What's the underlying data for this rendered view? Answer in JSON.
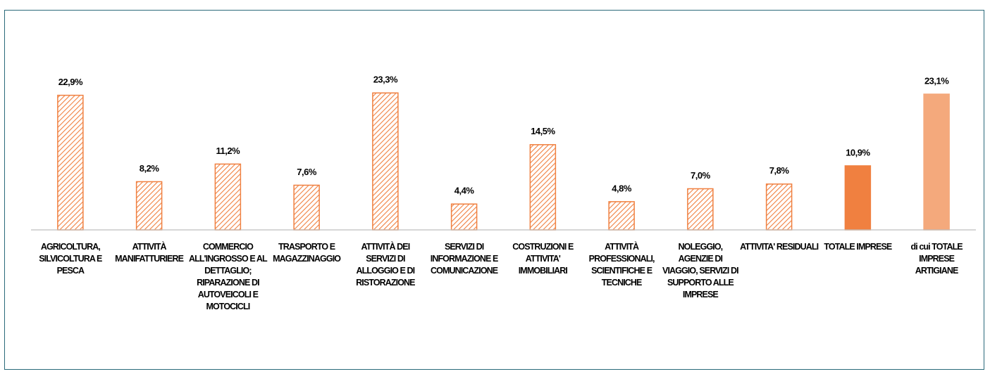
{
  "chart_data": {
    "type": "bar",
    "categories": [
      "AGRICOLTURA, SILVICOLTURA E PESCA",
      "ATTIVITÀ MANIFATTURIERE",
      "COMMERCIO ALL'INGROSSO E AL DETTAGLIO; RIPARAZIONE DI AUTOVEICOLI E MOTOCICLI",
      "TRASPORTO E MAGAZZINAGGIO",
      "ATTIVITÀ DEI SERVIZI DI ALLOGGIO E DI RISTORAZIONE",
      "SERVIZI DI INFORMAZIONE E COMUNICAZIONE",
      "COSTRUZIONI E ATTIVITA' IMMOBILIARI",
      "ATTIVITÀ PROFESSIONALI, SCIENTIFICHE E TECNICHE",
      "NOLEGGIO, AGENZIE DI VIAGGIO, SERVIZI DI SUPPORTO ALLE IMPRESE",
      "ATTIVITA' RESIDUALI",
      "TOTALE IMPRESE",
      "di cui TOTALE IMPRESE ARTIGIANE"
    ],
    "values": [
      22.9,
      8.2,
      11.2,
      7.6,
      23.3,
      4.4,
      14.5,
      4.8,
      7.0,
      7.8,
      10.9,
      23.1
    ],
    "value_labels": [
      "22,9%",
      "8,2%",
      "11,2%",
      "7,6%",
      "23,3%",
      "4,4%",
      "14,5%",
      "4,8%",
      "7,0%",
      "7,8%",
      "10,9%",
      "23,1%"
    ],
    "colors": [
      "#f08040",
      "#f08040",
      "#f08040",
      "#f08040",
      "#f08040",
      "#f08040",
      "#f08040",
      "#f08040",
      "#f08040",
      "#f08040",
      "#f08040",
      "#f4a97c"
    ],
    "hatched": [
      true,
      true,
      true,
      true,
      true,
      true,
      true,
      true,
      true,
      true,
      false,
      false
    ],
    "ylim": [
      0,
      25
    ]
  }
}
